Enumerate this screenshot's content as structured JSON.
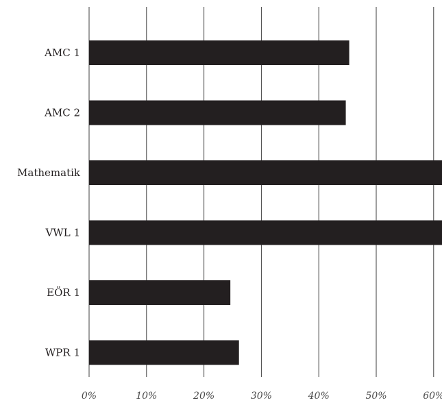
{
  "chart_data": {
    "type": "bar",
    "orientation": "horizontal",
    "title": "",
    "xlabel": "",
    "ylabel": "",
    "categories": [
      "AMC 1",
      "AMC 2",
      "Mathematik",
      "VWL 1",
      "EÖR 1",
      "WPR 1"
    ],
    "values": [
      45.3,
      44.7,
      62.0,
      62.0,
      24.6,
      26.1
    ],
    "value_unit": "%",
    "xlim": [
      0,
      60
    ],
    "x_ticks": [
      "0%",
      "10%",
      "20%",
      "30%",
      "40%",
      "50%",
      "60%"
    ],
    "grid": true,
    "legend": "none",
    "bar_color": "#231f20"
  }
}
